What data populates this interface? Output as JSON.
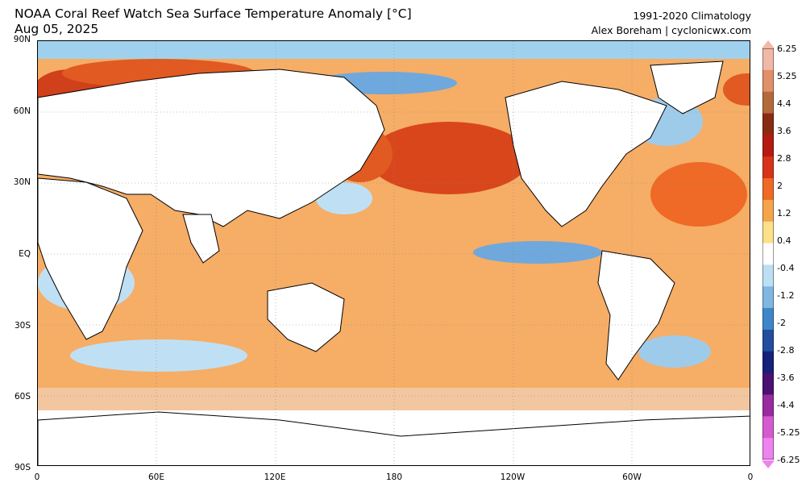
{
  "header": {
    "title_line1": "NOAA Coral Reef Watch Sea Surface Temperature Anomaly [°C]",
    "title_line2": "Aug 05, 2025",
    "climatology": "1991-2020 Climatology",
    "credit": "Alex Boreham | cyclonicwx.com"
  },
  "axes": {
    "lat_labels": [
      "90N",
      "60N",
      "30N",
      "EQ",
      "30S",
      "60S",
      "90S"
    ],
    "lon_labels": [
      "0",
      "60E",
      "120E",
      "180",
      "120W",
      "60W",
      "0"
    ]
  },
  "colorbar": {
    "labels": [
      "6.25",
      "5.25",
      "4.4",
      "3.6",
      "2.8",
      "2",
      "1.2",
      "0.4",
      "-0.4",
      "-1.2",
      "-2",
      "-2.8",
      "-3.6",
      "-4.4",
      "-5.25",
      "-6.25"
    ],
    "colors": [
      "#f2b8a6",
      "#e0906a",
      "#b36a3a",
      "#8b2a12",
      "#b51a10",
      "#d8331a",
      "#ee6a26",
      "#f6a44a",
      "#fde089",
      "#ffffff",
      "#bcdff3",
      "#7fb6e2",
      "#3d86c8",
      "#214e9e",
      "#17207a",
      "#4a1170",
      "#9a2aa0",
      "#d55ad0",
      "#ee82ee"
    ]
  },
  "map": {
    "ocean_colors": {
      "arctic": "#9fd1ee",
      "warm": "#f4a25a",
      "hot": "#e05a22",
      "very_hot": "#c22a12",
      "cool": "#bfe0f4",
      "cold": "#6fa8dc",
      "neutral": "#ffffff",
      "land": "#ffffff",
      "coast": "#000000"
    }
  }
}
